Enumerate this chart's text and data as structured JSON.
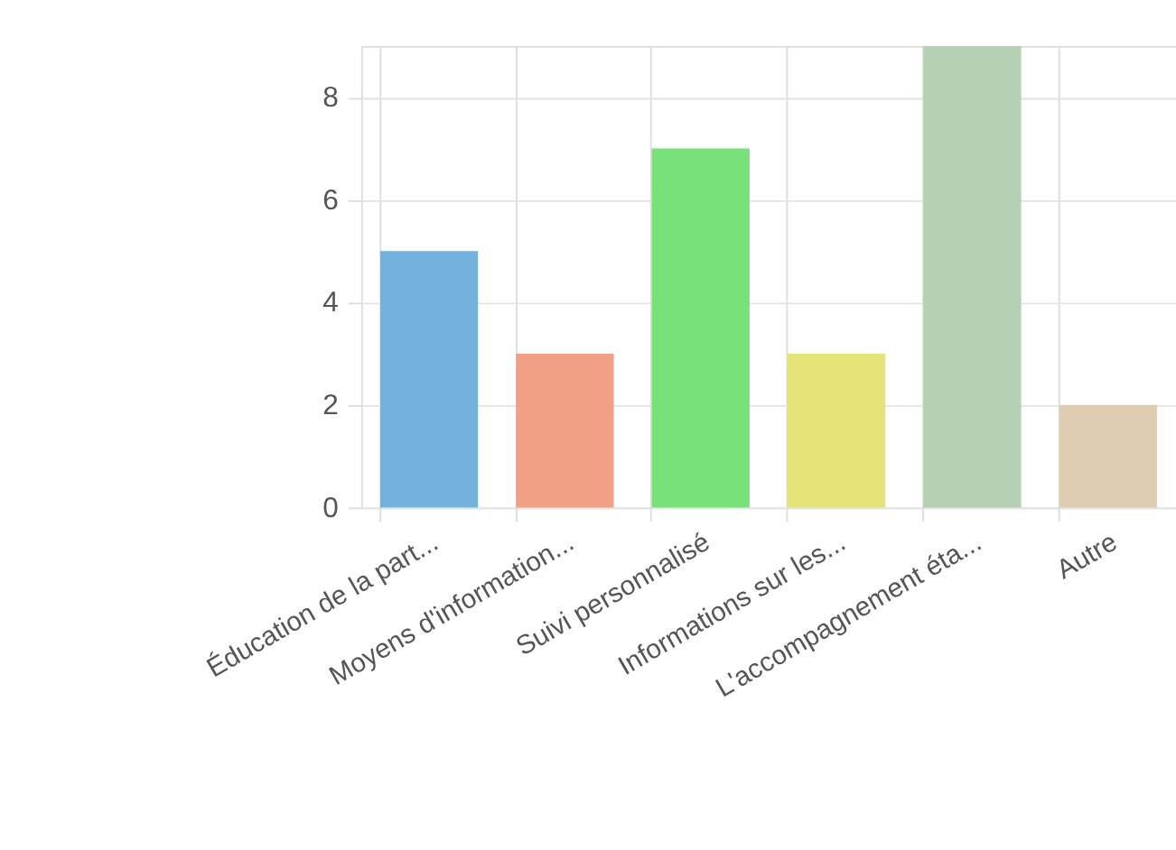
{
  "chart_data": {
    "type": "bar",
    "categories": [
      "Éducation de la part...",
      "Moyens d'information...",
      "Suivi personnalisé",
      "Informations sur les...",
      "L'accompagnement éta...",
      "Autre"
    ],
    "values": [
      5,
      3,
      7,
      3,
      9,
      2
    ],
    "colors": [
      "#72b2dd",
      "#f0a185",
      "#79e179",
      "#e3e378",
      "#b6d0b3",
      "#dfcdb3"
    ],
    "ylim": [
      0,
      9
    ],
    "yticks": [
      0,
      2,
      4,
      6,
      8
    ],
    "grid": true,
    "legend": false
  }
}
